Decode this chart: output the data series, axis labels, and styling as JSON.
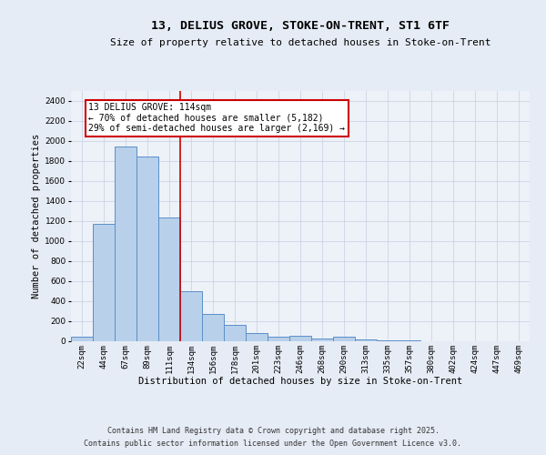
{
  "title_line1": "13, DELIUS GROVE, STOKE-ON-TRENT, ST1 6TF",
  "title_line2": "Size of property relative to detached houses in Stoke-on-Trent",
  "xlabel": "Distribution of detached houses by size in Stoke-on-Trent",
  "ylabel": "Number of detached properties",
  "categories": [
    "22sqm",
    "44sqm",
    "67sqm",
    "89sqm",
    "111sqm",
    "134sqm",
    "156sqm",
    "178sqm",
    "201sqm",
    "223sqm",
    "246sqm",
    "268sqm",
    "290sqm",
    "313sqm",
    "335sqm",
    "357sqm",
    "380sqm",
    "402sqm",
    "424sqm",
    "447sqm",
    "469sqm"
  ],
  "values": [
    50,
    1175,
    1950,
    1850,
    1240,
    500,
    270,
    160,
    80,
    45,
    55,
    25,
    50,
    15,
    10,
    5,
    0,
    0,
    0,
    0,
    0
  ],
  "bar_color": "#b8d0ea",
  "bar_edge_color": "#5b8fc9",
  "vline_color": "#cc0000",
  "annotation_text": "13 DELIUS GROVE: 114sqm\n← 70% of detached houses are smaller (5,182)\n29% of semi-detached houses are larger (2,169) →",
  "annotation_box_facecolor": "#ffffff",
  "annotation_box_edgecolor": "#cc0000",
  "ylim": [
    0,
    2500
  ],
  "yticks": [
    0,
    200,
    400,
    600,
    800,
    1000,
    1200,
    1400,
    1600,
    1800,
    2000,
    2200,
    2400
  ],
  "footnote_line1": "Contains HM Land Registry data © Crown copyright and database right 2025.",
  "footnote_line2": "Contains public sector information licensed under the Open Government Licence v3.0.",
  "bg_color": "#e6ecf5",
  "plot_bg_color": "#edf1f8",
  "title_fontsize": 9.5,
  "subtitle_fontsize": 8.0,
  "axis_label_fontsize": 7.5,
  "tick_fontsize": 6.5,
  "annotation_fontsize": 7.0,
  "footnote_fontsize": 6.0,
  "grid_color": "#c5cfe0"
}
